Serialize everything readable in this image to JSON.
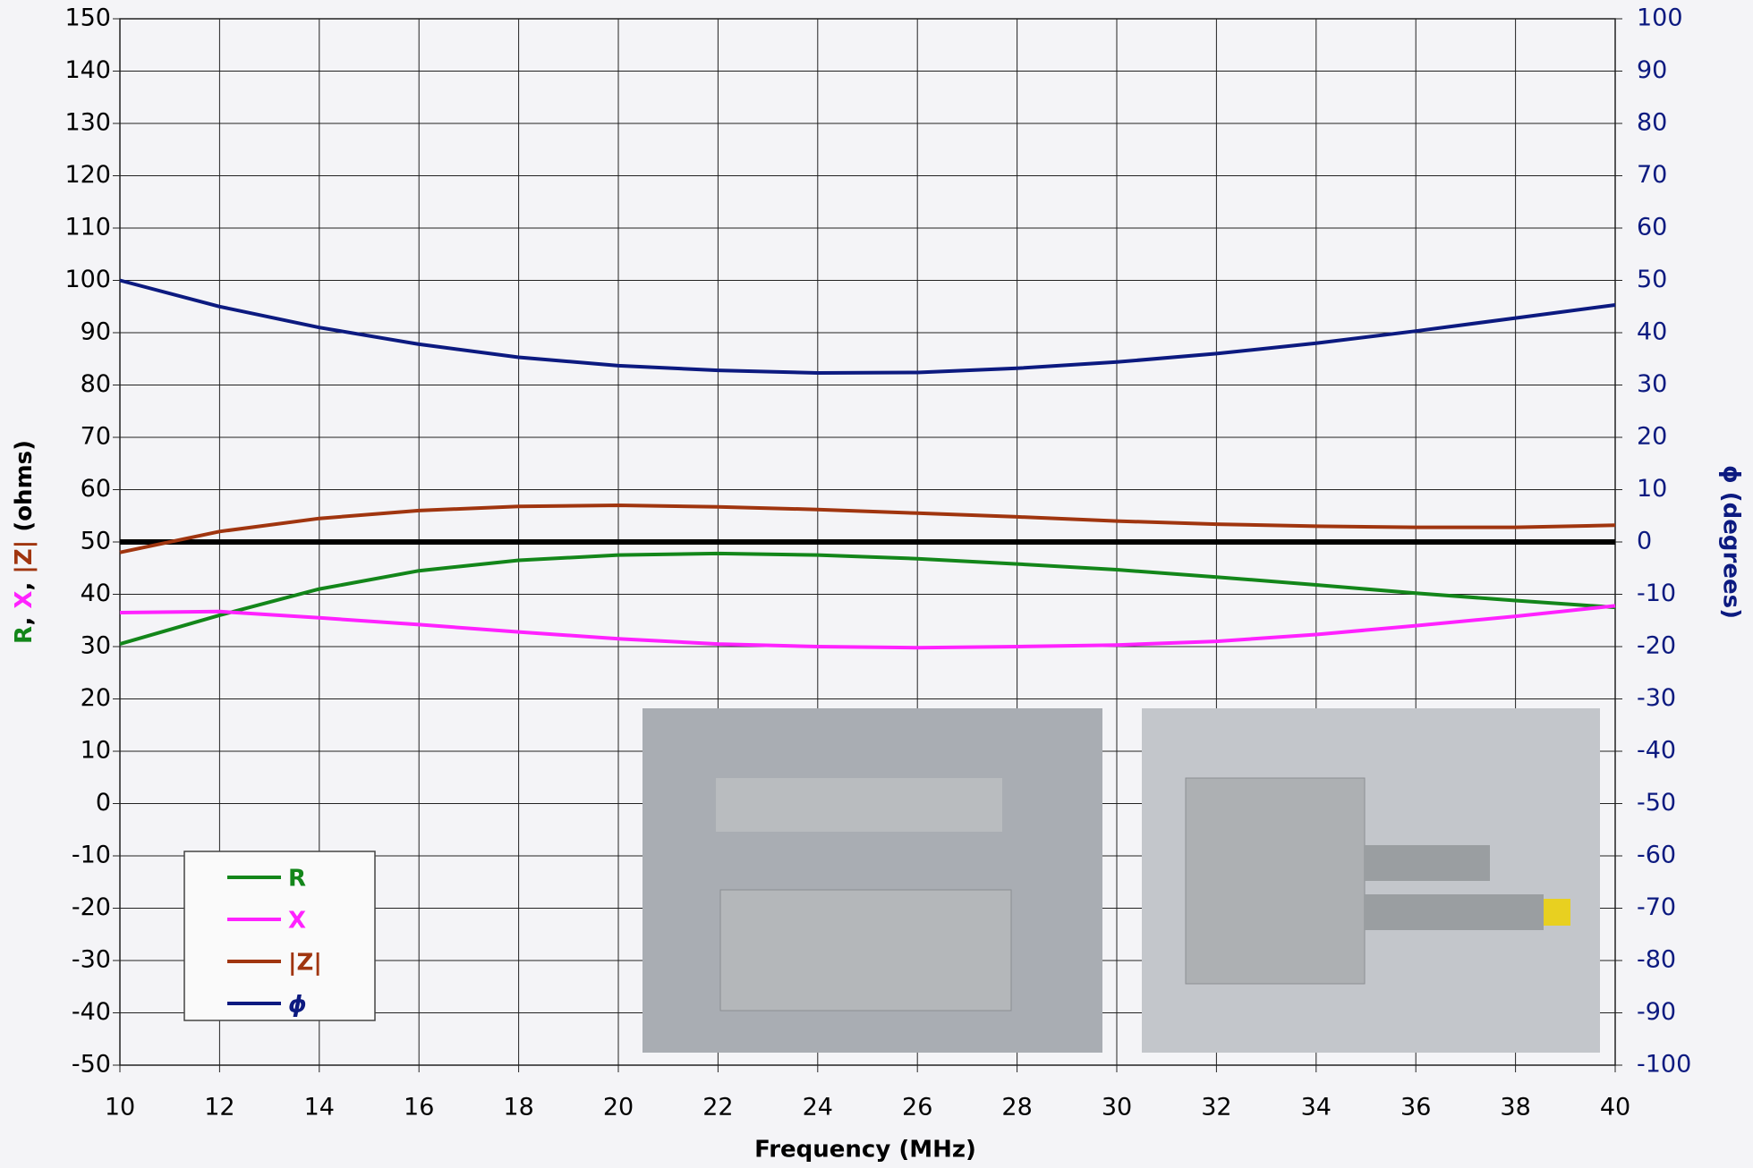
{
  "chart_data": {
    "type": "line",
    "x_label": "Frequency (MHz)",
    "y_label_parts": [
      "R",
      ", ",
      "X",
      ", ",
      "|Z|",
      " (ohms)"
    ],
    "y2_label": "ϕ (degrees)",
    "x": [
      10,
      12,
      14,
      16,
      18,
      20,
      22,
      24,
      26,
      28,
      30,
      32,
      34,
      36,
      38,
      40
    ],
    "series": [
      {
        "name": "R",
        "color": "#13861a",
        "values": [
          30.5,
          36,
          41,
          44.5,
          46.5,
          47.5,
          47.8,
          47.5,
          46.8,
          45.8,
          44.7,
          43.3,
          41.8,
          40.2,
          38.8,
          37.5
        ]
      },
      {
        "name": "X",
        "color": "#ff22ff",
        "values": [
          36.5,
          36.7,
          35.5,
          34.2,
          32.8,
          31.5,
          30.5,
          30,
          29.8,
          30,
          30.3,
          31,
          32.3,
          34,
          35.8,
          37.8
        ]
      },
      {
        "name": "|Z|",
        "color": "#a0350f",
        "values": [
          48,
          52,
          54.5,
          56,
          56.8,
          57,
          56.7,
          56.2,
          55.5,
          54.8,
          54,
          53.4,
          53,
          52.8,
          52.8,
          53.2
        ]
      },
      {
        "name": "ϕ",
        "color": "#0c1a80",
        "axis": "y2",
        "values": [
          50,
          45,
          41,
          37.8,
          35.3,
          33.7,
          32.8,
          32.3,
          32.4,
          33.2,
          34.4,
          36,
          38,
          40.3,
          42.8,
          45.3
        ]
      }
    ],
    "reference_line": 50,
    "xlim": [
      10,
      40
    ],
    "xticks": [
      10,
      12,
      14,
      16,
      18,
      20,
      22,
      24,
      26,
      28,
      30,
      32,
      34,
      36,
      38,
      40
    ],
    "ylim": [
      -50,
      150
    ],
    "yticks": [
      -50,
      -40,
      -30,
      -20,
      -10,
      0,
      10,
      20,
      30,
      40,
      50,
      60,
      70,
      80,
      90,
      100,
      110,
      120,
      130,
      140,
      150
    ],
    "y2lim": [
      -100,
      100
    ],
    "y2ticks": [
      -100,
      -90,
      -80,
      -70,
      -60,
      -50,
      -40,
      -30,
      -20,
      -10,
      0,
      10,
      20,
      30,
      40,
      50,
      60,
      70,
      80,
      90,
      100
    ],
    "grid": true,
    "legend": "lower left"
  }
}
